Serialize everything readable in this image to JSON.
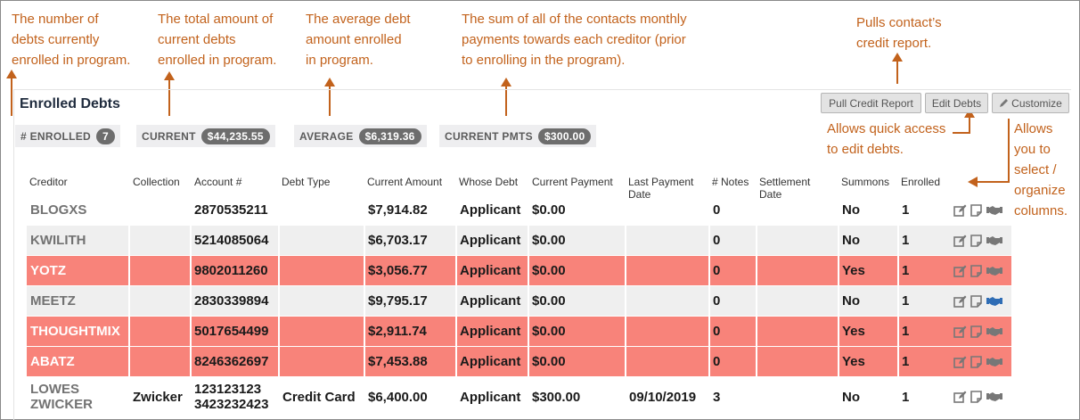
{
  "annotations": {
    "enrolled": "The number of\ndebts currently\nenrolled in program.",
    "current": "The total amount of\ncurrent debts\nenrolled in program.",
    "average": "The average  debt\namount enrolled\nin program.",
    "current_pmts": "The sum of all of the contacts monthly\npayments towards each creditor (prior\nto enrolling in the program).",
    "pull_credit": "Pulls contact’s\ncredit report.",
    "edit_debts": "Allows quick access\nto edit debts.",
    "customize": "Allows\nyou to\nselect /\norganize\ncolumns."
  },
  "panel": {
    "title": "Enrolled Debts"
  },
  "toolbar": {
    "pull_credit_label": "Pull Credit Report",
    "edit_debts_label": "Edit Debts",
    "customize_label": "Customize"
  },
  "stats": {
    "enrolled": {
      "label": "# ENROLLED",
      "value": "7"
    },
    "current": {
      "label": "CURRENT",
      "value": "$44,235.55"
    },
    "average": {
      "label": "AVERAGE",
      "value": "$6,319.36"
    },
    "current_pmts": {
      "label": "CURRENT PMTS",
      "value": "$300.00"
    }
  },
  "table": {
    "headers": {
      "creditor": "Creditor",
      "collection": "Collection",
      "account": "Account #",
      "debt_type": "Debt Type",
      "current_amount": "Current Amount",
      "whose_debt": "Whose Debt",
      "current_payment": "Current Payment",
      "last_payment_date": "Last Payment\nDate",
      "notes": "# Notes",
      "settlement_date": "Settlement\nDate",
      "summons": "Summons",
      "enrolled": "Enrolled"
    },
    "rows": [
      {
        "creditor": "BLOGXS",
        "collection": "",
        "account": "2870535211",
        "debt_type": "",
        "current_amount": "$7,914.82",
        "whose_debt": "Applicant",
        "current_payment": "$0.00",
        "last_payment_date": "",
        "notes": "0",
        "settlement_date": "",
        "summons": "No",
        "enrolled": "1",
        "style": "white"
      },
      {
        "creditor": "KWILITH",
        "collection": "",
        "account": "5214085064",
        "debt_type": "",
        "current_amount": "$6,703.17",
        "whose_debt": "Applicant",
        "current_payment": "$0.00",
        "last_payment_date": "",
        "notes": "0",
        "settlement_date": "",
        "summons": "No",
        "enrolled": "1",
        "style": "gray"
      },
      {
        "creditor": "YOTZ",
        "collection": "",
        "account": "9802011260",
        "debt_type": "",
        "current_amount": "$3,056.77",
        "whose_debt": "Applicant",
        "current_payment": "$0.00",
        "last_payment_date": "",
        "notes": "0",
        "settlement_date": "",
        "summons": "Yes",
        "enrolled": "1",
        "style": "red"
      },
      {
        "creditor": "MEETZ",
        "collection": "",
        "account": "2830339894",
        "debt_type": "",
        "current_amount": "$9,795.17",
        "whose_debt": "Applicant",
        "current_payment": "$0.00",
        "last_payment_date": "",
        "notes": "0",
        "settlement_date": "",
        "summons": "No",
        "enrolled": "1",
        "style": "gray"
      },
      {
        "creditor": "THOUGHTMIX",
        "collection": "",
        "account": "5017654499",
        "debt_type": "",
        "current_amount": "$2,911.74",
        "whose_debt": "Applicant",
        "current_payment": "$0.00",
        "last_payment_date": "",
        "notes": "0",
        "settlement_date": "",
        "summons": "Yes",
        "enrolled": "1",
        "style": "red"
      },
      {
        "creditor": "ABATZ",
        "collection": "",
        "account": "8246362697",
        "debt_type": "",
        "current_amount": "$7,453.88",
        "whose_debt": "Applicant",
        "current_payment": "$0.00",
        "last_payment_date": "",
        "notes": "0",
        "settlement_date": "",
        "summons": "Yes",
        "enrolled": "1",
        "style": "red"
      },
      {
        "creditor": "LOWES\nZWICKER",
        "collection": "Zwicker",
        "account": "123123123\n3423232423",
        "debt_type": "Credit Card",
        "current_amount": "$6,400.00",
        "whose_debt": "Applicant",
        "current_payment": "$300.00",
        "last_payment_date": "09/10/2019",
        "notes": "3",
        "settlement_date": "",
        "summons": "No",
        "enrolled": "1",
        "style": "white"
      }
    ]
  },
  "row_icons": [
    "edit-icon",
    "note-icon",
    "handshake-icon"
  ],
  "colors": {
    "accent": "#c2621c",
    "summons_row": "#f8837a",
    "badge": "#6d6d6d",
    "handshake_active": "#2f6db5"
  }
}
